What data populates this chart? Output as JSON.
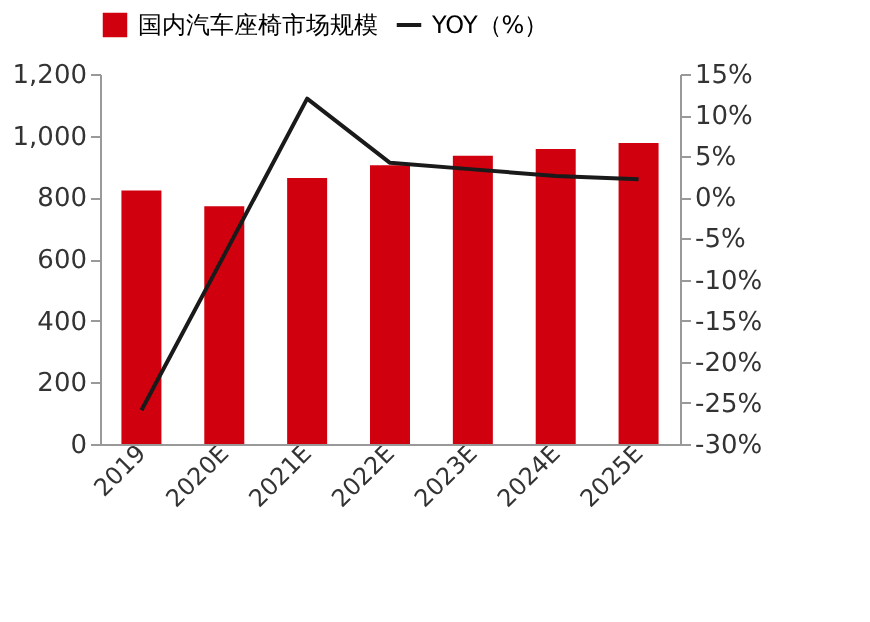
{
  "chart_data": {
    "type": "bar",
    "categories": [
      "2019",
      "2020E",
      "2021E",
      "2022E",
      "2023E",
      "2024E",
      "2025E"
    ],
    "series": [
      {
        "name": "国内汽车座椅市场规模",
        "color": "#d0000f",
        "values": [
          822,
          771,
          863,
          904,
          935,
          957,
          976
        ]
      },
      {
        "name": "YOY（%）",
        "type": "line",
        "axis": "y2",
        "color": "#1a1a1a",
        "values": [
          -25.9,
          -7.0,
          12.0,
          4.2,
          3.4,
          2.6,
          2.2
        ]
      }
    ],
    "ylim": [
      0,
      1200
    ],
    "yticks": [
      0,
      200,
      400,
      600,
      800,
      {
        "value": 1000,
        "label": "1,000"
      },
      {
        "value": 1200,
        "label": "1,200"
      }
    ],
    "y2lim": [
      -30,
      15
    ],
    "y2ticks": [
      {
        "value": -30,
        "label": "-30%"
      },
      {
        "value": -25,
        "label": "-25%"
      },
      {
        "value": -20,
        "label": "-20%"
      },
      {
        "value": -15,
        "label": "-15%"
      },
      {
        "value": -10,
        "label": "-10%"
      },
      {
        "value": -5,
        "label": "-5%"
      },
      {
        "value": 0,
        "label": "0%"
      },
      {
        "value": 5,
        "label": "5%"
      },
      {
        "value": 10,
        "label": "10%"
      },
      {
        "value": 15,
        "label": "15%"
      }
    ],
    "legend": "top",
    "grid": false,
    "marker": "none",
    "line_style": "solid"
  }
}
